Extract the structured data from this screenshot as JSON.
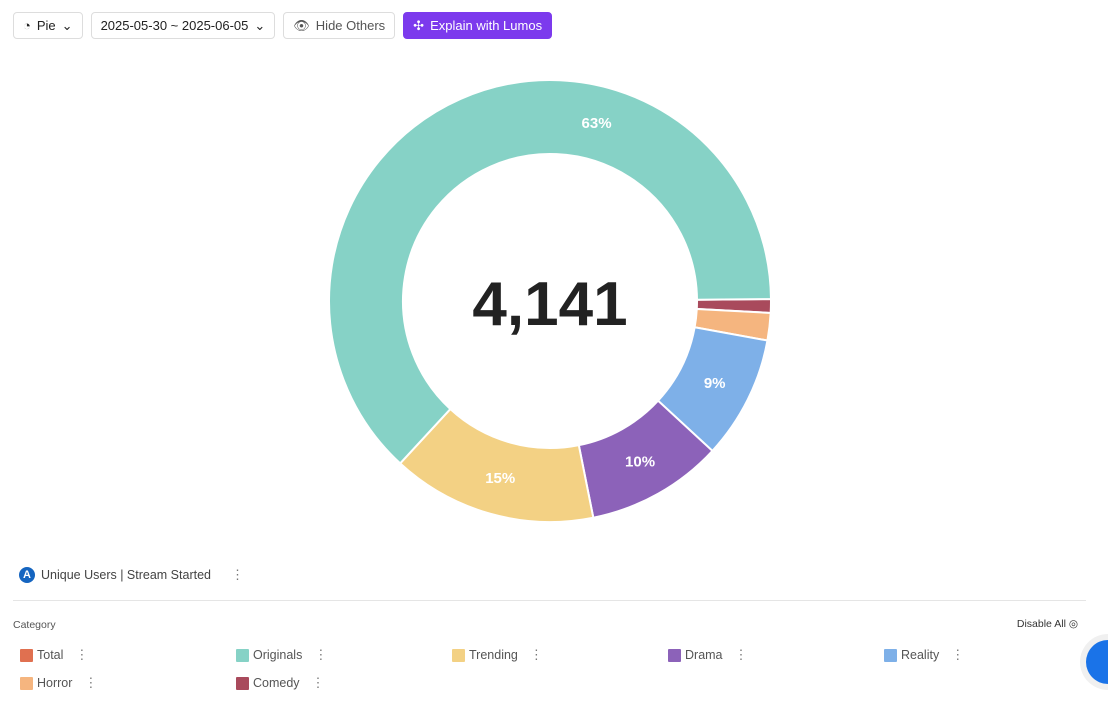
{
  "toolbar": {
    "chart_type": "Pie",
    "date_range": "2025-05-30 ~ 2025-06-05",
    "hide_others": "Hide Others",
    "explain": "Explain with Lumos"
  },
  "metric": {
    "badge": "A",
    "label": "Unique Users | Stream Started"
  },
  "legend": {
    "title": "Category",
    "disable_all": "Disable All"
  },
  "chart_data": {
    "type": "pie",
    "donut": true,
    "total_label": "4,141",
    "categories": [
      "Total",
      "Originals",
      "Trending",
      "Drama",
      "Reality",
      "Horror",
      "Comedy"
    ],
    "colors": [
      "#e07050",
      "#86d2c6",
      "#f3d184",
      "#8c62b9",
      "#7eb0e8",
      "#f5b57f",
      "#a94a5c"
    ],
    "values": [
      0,
      63,
      15,
      10,
      9,
      2,
      1
    ],
    "slice_order_clockwise_from_east": [
      "Comedy",
      "Horror",
      "Reality",
      "Drama",
      "Trending",
      "Originals"
    ]
  }
}
